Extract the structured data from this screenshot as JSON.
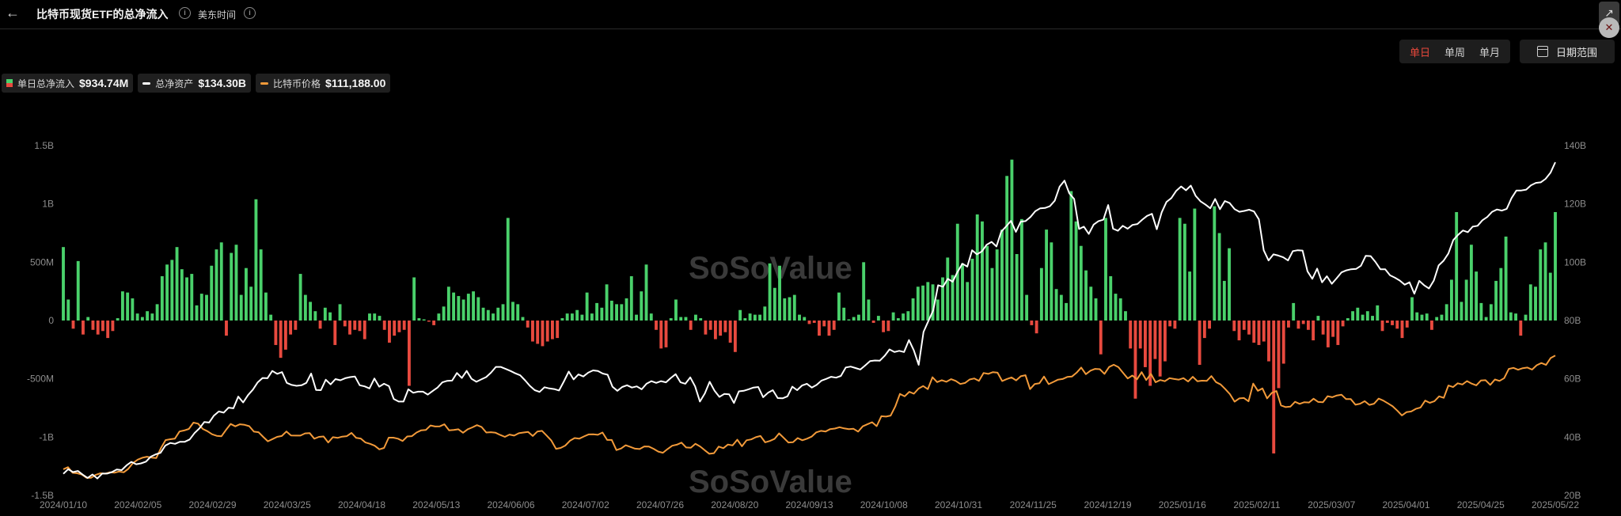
{
  "header": {
    "back_icon": "arrow-left-icon",
    "title": "比特币现货ETF的总净流入",
    "timezone": "美东时间"
  },
  "controls": {
    "periods": [
      "单日",
      "单周",
      "单月"
    ],
    "active_period": "单日",
    "date_range_label": "日期范围"
  },
  "legend": [
    {
      "label": "单日总净流入",
      "value": "$934.74M",
      "color": "#4ad16b"
    },
    {
      "label": "总净资产",
      "value": "$134.30B",
      "color": "#ffffff"
    },
    {
      "label": "比特币价格",
      "value": "$111,188.00",
      "color": "#f29a3a"
    }
  ],
  "chart_data": {
    "type": "bar+line",
    "left_axis": {
      "ticks": [
        "1.5B",
        "1B",
        "500M",
        "0",
        "-500M",
        "-1B",
        "-1.5B"
      ],
      "range": [
        -1.5,
        1.5
      ],
      "unit": "B"
    },
    "right_axis": {
      "ticks": [
        "140B",
        "120B",
        "100B",
        "80B",
        "60B",
        "40B",
        "20B"
      ],
      "range": [
        20,
        140
      ],
      "unit": "B"
    },
    "x_ticks": [
      "2024/01/10",
      "2024/02/05",
      "2024/02/29",
      "2024/03/25",
      "2024/04/18",
      "2024/05/13",
      "2024/06/06",
      "2024/07/02",
      "2024/07/26",
      "2024/08/20",
      "2024/09/13",
      "2024/10/08",
      "2024/10/31",
      "2024/11/25",
      "2024/12/19",
      "2025/01/16",
      "2025/02/11",
      "2025/03/07",
      "2025/04/01",
      "2025/04/25",
      "2025/05/22"
    ],
    "colors": {
      "inflow": "#4ad16b",
      "outflow": "#e84a3f",
      "net_assets": "#ffffff",
      "btc_price": "#f29a3a"
    },
    "daily_net_inflow_B": [
      0.63,
      0.18,
      -0.07,
      0.51,
      -0.12,
      0.03,
      -0.08,
      -0.12,
      -0.09,
      -0.15,
      -0.09,
      0.02,
      0.25,
      0.24,
      0.19,
      0.06,
      0.03,
      0.08,
      0.06,
      0.14,
      0.38,
      0.48,
      0.52,
      0.63,
      0.44,
      0.37,
      0.4,
      0.13,
      0.23,
      0.22,
      0.47,
      0.61,
      0.67,
      -0.13,
      0.58,
      0.65,
      0.22,
      0.45,
      0.29,
      1.04,
      0.61,
      0.24,
      0.05,
      -0.21,
      -0.32,
      -0.25,
      -0.12,
      -0.08,
      0.4,
      0.22,
      0.16,
      0.08,
      -0.07,
      0.11,
      0.07,
      -0.21,
      0.14,
      -0.05,
      -0.12,
      -0.08,
      -0.09,
      -0.16,
      0.06,
      0.06,
      0.04,
      -0.08,
      -0.19,
      -0.13,
      -0.1,
      -0.08,
      -0.56,
      0.37,
      0.02,
      0.01,
      -0.01,
      -0.04,
      0.06,
      0.12,
      0.29,
      0.24,
      0.21,
      0.18,
      0.23,
      0.25,
      0.2,
      0.11,
      0.09,
      0.06,
      0.11,
      0.14,
      0.88,
      0.16,
      0.14,
      0.03,
      -0.06,
      -0.18,
      -0.2,
      -0.22,
      -0.18,
      -0.16,
      -0.15,
      0.02,
      0.06,
      0.06,
      0.09,
      0.05,
      0.24,
      0.06,
      0.15,
      0.11,
      0.31,
      0.17,
      0.14,
      0.14,
      0.19,
      0.38,
      0.05,
      0.25,
      0.48,
      0.06,
      -0.08,
      -0.24,
      -0.23,
      0.02,
      0.18,
      0.03,
      0.03,
      -0.08,
      0.05,
      0.02,
      -0.12,
      -0.08,
      -0.16,
      -0.13,
      -0.1,
      -0.19,
      -0.27,
      0.09,
      0.02,
      0.06,
      0.05,
      0.05,
      0.12,
      0.49,
      0.28,
      0.47,
      0.19,
      0.2,
      0.22,
      0.05,
      0.03,
      -0.03,
      -0.02,
      -0.13,
      -0.05,
      -0.13,
      -0.08,
      0.24,
      0.11,
      0.01,
      0.03,
      0.05,
      0.5,
      0.18,
      -0.02,
      0.04,
      -0.1,
      -0.09,
      0.07,
      0.02,
      0.06,
      0.08,
      0.19,
      0.29,
      0.3,
      0.33,
      0.31,
      0.18,
      0.37,
      0.54,
      0.39,
      0.83,
      0.49,
      0.33,
      0.53,
      0.91,
      0.85,
      0.64,
      0.45,
      0.61,
      0.78,
      1.24,
      1.38,
      0.57,
      0.87,
      0.22,
      -0.04,
      -0.11,
      0.45,
      0.78,
      0.67,
      0.27,
      0.22,
      0.15,
      1.11,
      0.85,
      0.64,
      0.43,
      0.29,
      0.19,
      -0.29,
      0.88,
      0.38,
      0.23,
      0.19,
      0.08,
      -0.24,
      -0.67,
      -0.24,
      -0.4,
      -0.56,
      -0.33,
      -0.48,
      -0.35,
      -0.05,
      -0.07,
      0.88,
      0.83,
      0.42,
      0.96,
      -0.38,
      -0.15,
      -0.07,
      0.98,
      0.75,
      0.34,
      0.62,
      -0.09,
      -0.17,
      -0.08,
      -0.12,
      -0.19,
      -0.21,
      -0.18,
      -0.35,
      -1.14,
      -0.58,
      -0.37,
      -0.06,
      0.15,
      -0.07,
      -0.03,
      -0.08,
      -0.17,
      0.04,
      -0.12,
      -0.23,
      -0.14,
      -0.21,
      -0.05,
      0.02,
      0.08,
      0.11,
      0.05,
      0.08,
      0.04,
      0.13,
      -0.09,
      -0.02,
      -0.04,
      -0.07,
      -0.15,
      -0.06,
      0.2,
      0.07,
      0.05,
      0.06,
      -0.08,
      0.03,
      0.05,
      0.14,
      0.35,
      0.93,
      0.16,
      0.35,
      0.65,
      0.42,
      0.15,
      0.03,
      0.14,
      0.34,
      0.45,
      0.72,
      0.07,
      0.06,
      -0.13,
      0.05,
      0.31,
      0.29,
      0.61,
      0.67,
      0.41,
      0.93
    ],
    "net_assets_B": [
      27.4,
      29.0,
      28.0,
      28.4,
      27.1,
      26.0,
      27.2,
      25.8,
      27.5,
      27.5,
      28.0,
      28.9,
      28.7,
      30.3,
      31.5,
      30.7,
      31.0,
      31.6,
      33.3,
      34.1,
      34.6,
      37.1,
      38.0,
      37.7,
      38.4,
      38.4,
      39.2,
      41.4,
      43.0,
      45.2,
      45.0,
      47.4,
      48.8,
      48.4,
      50.1,
      49.9,
      53.9,
      51.9,
      54.4,
      56.3,
      58.8,
      60.3,
      60.2,
      62.7,
      61.7,
      62.3,
      58.6,
      57.9,
      57.6,
      57.8,
      58.6,
      61.8,
      56.2,
      56.1,
      59.7,
      58.1,
      59.9,
      59.5,
      60.2,
      60.6,
      60.8,
      57.8,
      57.4,
      56.7,
      60.1,
      57.3,
      58.3,
      57.5,
      53.1,
      52.2,
      52.2,
      56.4,
      55.2,
      55.6,
      55.6,
      54.6,
      55.8,
      57.0,
      58.8,
      59.3,
      59.4,
      62.0,
      60.3,
      62.7,
      60.0,
      59.0,
      59.8,
      60.6,
      62.1,
      64.1,
      64.1,
      63.4,
      62.7,
      61.9,
      61.2,
      59.5,
      57.6,
      56.1,
      55.5,
      57.1,
      56.7,
      56.5,
      56.0,
      59.1,
      62.5,
      59.8,
      61.5,
      60.8,
      62.1,
      62.9,
      62.7,
      61.8,
      61.4,
      57.3,
      55.9,
      57.2,
      57.8,
      57.0,
      57.4,
      56.4,
      58.3,
      59.2,
      58.6,
      59.2,
      58.8,
      60.3,
      61.6,
      58.8,
      58.3,
      60.5,
      57.4,
      52.2,
      55.0,
      59.0,
      55.9,
      53.8,
      54.8,
      54.7,
      51.7,
      55.7,
      55.9,
      56.4,
      57.0,
      57.2,
      53.7,
      55.2,
      56.1,
      53.4,
      53.3,
      54.0,
      57.3,
      56.1,
      57.7,
      58.3,
      57.0,
      57.9,
      59.4,
      60.0,
      60.7,
      60.4,
      61.0,
      63.9,
      64.2,
      63.7,
      63.2,
      64.6,
      66.1,
      66.3,
      66.2,
      67.9,
      70.1,
      69.2,
      69.6,
      69.2,
      73.3,
      69.8,
      64.8,
      76.1,
      79.8,
      83.5,
      92.1,
      91.6,
      94.3,
      93.3,
      96.7,
      99.5,
      98.5,
      104.1,
      102.7,
      103.7,
      106.0,
      107.0,
      105.4,
      110.5,
      112.3,
      114.2,
      110.4,
      113.9,
      114.1,
      115.5,
      117.5,
      118.5,
      118.6,
      119.2,
      121.1,
      125.9,
      128.0,
      123.6,
      121.7,
      111.4,
      112.2,
      109.7,
      112.9,
      114.1,
      114.6,
      119.6,
      111.5,
      110.8,
      112.5,
      111.5,
      112.8,
      113.1,
      114.6,
      115.9,
      116.6,
      111.3,
      117.1,
      120.7,
      122.0,
      124.5,
      126.0,
      124.7,
      126.3,
      122.8,
      120.9,
      119.8,
      118.5,
      121.7,
      118.2,
      121.0,
      120.3,
      118.2,
      117.3,
      117.6,
      118.0,
      117.4,
      114.7,
      104.1,
      100.6,
      102.7,
      102.3,
      101.7,
      100.6,
      103.8,
      104.1,
      104.0,
      96.9,
      94.3,
      97.8,
      93.1,
      95.2,
      92.6,
      94.5,
      96.5,
      97.2,
      97.6,
      97.7,
      98.8,
      102.2,
      102.1,
      100.1,
      97.6,
      97.6,
      95.5,
      94.7,
      93.7,
      92.3,
      93.1,
      89.2,
      93.6,
      92.1,
      91.0,
      93.7,
      98.9,
      100.5,
      103.0,
      107.6,
      109.4,
      110.9,
      110.3,
      112.2,
      112.5,
      114.4,
      115.5,
      117.3,
      118.1,
      117.7,
      118.3,
      122.0,
      124.6,
      124.6,
      124.9,
      126.4,
      127.2,
      127.4,
      128.6,
      130.7,
      134.3
    ],
    "btc_price": [
      44940,
      46122,
      42828,
      42581,
      41800,
      39900,
      39950,
      41700,
      42580,
      42330,
      43100,
      42900,
      43600,
      43100,
      45200,
      48600,
      50500,
      51600,
      52200,
      51700,
      51400,
      57200,
      61900,
      62400,
      62700,
      66900,
      67500,
      68400,
      72100,
      71500,
      68400,
      67100,
      65300,
      64400,
      64100,
      67800,
      71300,
      69900,
      71100,
      70800,
      70000,
      66800,
      66500,
      63800,
      61200,
      62500,
      63800,
      64300,
      66900,
      64600,
      64500,
      64500,
      65800,
      66000,
      62700,
      63800,
      64000,
      60500,
      63600,
      63200,
      63900,
      64200,
      66100,
      63200,
      62800,
      60500,
      59700,
      58600,
      56500,
      57300,
      63300,
      63300,
      62700,
      61400,
      64000,
      64200,
      66300,
      67600,
      67800,
      70400,
      69800,
      69900,
      71100,
      67600,
      67800,
      68200,
      66200,
      68200,
      69300,
      70600,
      69500,
      66300,
      66500,
      66200,
      64900,
      63800,
      65100,
      64500,
      65900,
      66300,
      66700,
      64300,
      66900,
      67300,
      64500,
      61600,
      56800,
      57300,
      58700,
      61500,
      63100,
      62700,
      64000,
      65200,
      65300,
      65000,
      66300,
      62000,
      62000,
      56100,
      57000,
      58900,
      57900,
      56900,
      56700,
      58200,
      58100,
      56800,
      55200,
      54500,
      56700,
      58600,
      59200,
      60400,
      57600,
      57400,
      59700,
      58200,
      56000,
      53900,
      54300,
      58100,
      57200,
      59300,
      58800,
      62100,
      58300,
      61800,
      62300,
      63600,
      64300,
      60600,
      61400,
      62600,
      65800,
      63200,
      60500,
      60700,
      63100,
      61800,
      62700,
      63900,
      66400,
      67300,
      66900,
      68300,
      68600,
      69400,
      68700,
      68300,
      68500,
      66800,
      69900,
      71100,
      72300,
      70000,
      75800,
      75600,
      76200,
      81500,
      88800,
      87400,
      90000,
      88900,
      91900,
      93400,
      91600,
      98500,
      95700,
      96800,
      95900,
      97400,
      96400,
      94600,
      95200,
      97200,
      97800,
      96400,
      101000,
      100500,
      101500,
      101200,
      96300,
      97500,
      98400,
      96700,
      99100,
      99700,
      91600,
      94600,
      95000,
      98900,
      94500,
      95800,
      97100,
      97500,
      98700,
      98900,
      101200,
      104200,
      100300,
      102400,
      103400,
      103200,
      100500,
      104500,
      105800,
      104400,
      101100,
      97800,
      99500,
      97300,
      101500,
      96900,
      100500,
      95600,
      96900,
      96200,
      98000,
      97500,
      97100,
      98000,
      96000,
      98800,
      96200,
      96500,
      96400,
      99200,
      95700,
      94300,
      91600,
      88700,
      84300,
      86200,
      86400,
      84500,
      94800,
      90600,
      92000,
      86200,
      89400,
      90500,
      82100,
      81100,
      81400,
      84200,
      83000,
      84000,
      83800,
      86000,
      84100,
      84000,
      87500,
      86900,
      87900,
      88300,
      85800,
      85800,
      82500,
      83100,
      84600,
      82400,
      83100,
      86100,
      84900,
      83300,
      81600,
      79100,
      76300,
      78200,
      78600,
      80100,
      80900,
      84900,
      83600,
      84600,
      87400,
      86500,
      93700,
      92800,
      95000,
      94300,
      96300,
      94800,
      93800,
      96600,
      96800,
      94100,
      97200,
      96400,
      98000,
      103400,
      104000,
      102900,
      103800,
      104200,
      103000,
      105500,
      106800,
      105700,
      109700,
      111188
    ]
  }
}
